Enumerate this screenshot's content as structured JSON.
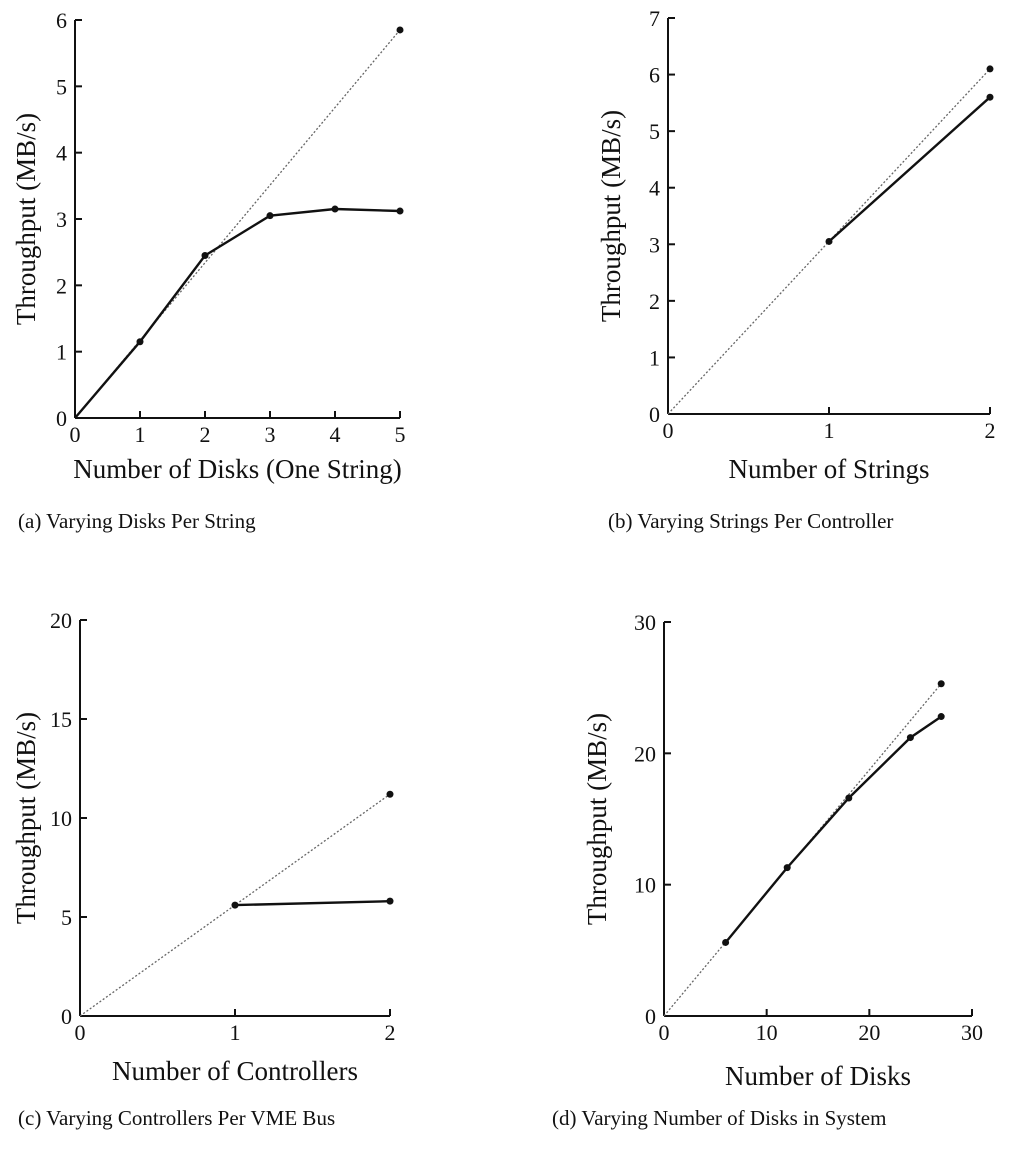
{
  "chart_data": [
    {
      "type": "line",
      "caption": "(a) Varying Disks Per String",
      "xlabel": "Number of Disks (One String)",
      "ylabel": "Throughput (MB/s)",
      "xlim": [
        0,
        5
      ],
      "ylim": [
        0,
        6
      ],
      "xticks": [
        "0",
        "1",
        "2",
        "3",
        "4",
        "5"
      ],
      "yticks": [
        "0",
        "1",
        "2",
        "3",
        "4",
        "5",
        "6"
      ],
      "grid": false,
      "series": [
        {
          "style": "dotted",
          "x": [
            0,
            5
          ],
          "y": [
            0,
            5.85
          ]
        },
        {
          "style": "solid",
          "x": [
            0,
            1,
            2,
            3,
            4,
            5
          ],
          "y": [
            0,
            1.15,
            2.45,
            3.05,
            3.15,
            3.12
          ]
        }
      ]
    },
    {
      "type": "line",
      "caption": "(b) Varying Strings Per Controller",
      "xlabel": "Number of Strings",
      "ylabel": "Throughput (MB/s)",
      "xlim": [
        0,
        2
      ],
      "ylim": [
        0,
        7
      ],
      "xticks": [
        "0",
        "1",
        "2"
      ],
      "yticks": [
        "0",
        "1",
        "2",
        "3",
        "4",
        "5",
        "6",
        "7"
      ],
      "grid": false,
      "series": [
        {
          "style": "dotted",
          "x": [
            0,
            2
          ],
          "y": [
            0,
            6.1
          ]
        },
        {
          "style": "solid",
          "x": [
            1,
            2
          ],
          "y": [
            3.05,
            5.6
          ]
        }
      ]
    },
    {
      "type": "line",
      "caption": "(c) Varying Controllers Per VME Bus",
      "xlabel": "Number of Controllers",
      "ylabel": "Throughput (MB/s)",
      "xlim": [
        0,
        2
      ],
      "ylim": [
        0,
        20
      ],
      "xticks": [
        "0",
        "1",
        "2"
      ],
      "yticks": [
        "0",
        "5",
        "10",
        "15",
        "20"
      ],
      "grid": false,
      "series": [
        {
          "style": "dotted",
          "x": [
            0,
            2
          ],
          "y": [
            0,
            11.2
          ]
        },
        {
          "style": "solid",
          "x": [
            1,
            2
          ],
          "y": [
            5.6,
            5.8
          ]
        }
      ]
    },
    {
      "type": "line",
      "caption": "(d) Varying Number of Disks in System",
      "xlabel": "Number of Disks",
      "ylabel": "Throughput (MB/s)",
      "xlim": [
        0,
        30
      ],
      "ylim": [
        0,
        30
      ],
      "xticks": [
        "0",
        "10",
        "20",
        "30"
      ],
      "yticks": [
        "0",
        "10",
        "20",
        "30"
      ],
      "grid": false,
      "series": [
        {
          "style": "dotted",
          "x": [
            0,
            27
          ],
          "y": [
            0,
            25.3
          ]
        },
        {
          "style": "solid",
          "x": [
            6,
            12,
            18,
            24,
            27
          ],
          "y": [
            5.6,
            11.3,
            16.6,
            21.2,
            22.8
          ]
        }
      ]
    }
  ]
}
